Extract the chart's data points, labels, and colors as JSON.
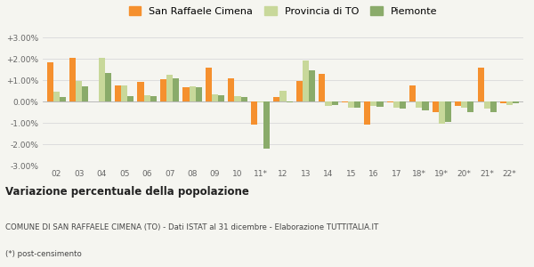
{
  "years": [
    "02",
    "03",
    "04",
    "05",
    "06",
    "07",
    "08",
    "09",
    "10",
    "11*",
    "12",
    "13",
    "14",
    "15",
    "16",
    "17",
    "18*",
    "19*",
    "20*",
    "21*",
    "22*"
  ],
  "san_raffaele": [
    1.85,
    2.05,
    0.0,
    0.75,
    0.9,
    1.05,
    0.65,
    1.6,
    1.1,
    -1.1,
    0.2,
    0.95,
    1.3,
    -0.05,
    -1.1,
    -0.05,
    0.75,
    -0.5,
    -0.2,
    1.6,
    -0.1
  ],
  "provincia_to": [
    0.45,
    0.95,
    2.05,
    0.75,
    0.3,
    1.25,
    0.7,
    0.35,
    0.25,
    -0.05,
    0.5,
    1.9,
    -0.2,
    -0.3,
    -0.2,
    -0.3,
    -0.3,
    -1.05,
    -0.3,
    -0.35,
    -0.15
  ],
  "piemonte": [
    0.2,
    0.7,
    1.35,
    0.25,
    0.25,
    1.1,
    0.65,
    0.3,
    0.2,
    -2.2,
    -0.05,
    1.45,
    -0.15,
    -0.3,
    -0.25,
    -0.35,
    -0.4,
    -0.95,
    -0.5,
    -0.5,
    -0.1
  ],
  "color_san_raffaele": "#f5902e",
  "color_provincia": "#c8d89a",
  "color_piemonte": "#8aab6a",
  "ylim": [
    -3.0,
    3.0
  ],
  "ytick_labels": [
    "-3.00%",
    "-2.00%",
    "-1.00%",
    "0.00%",
    "+1.00%",
    "+2.00%",
    "+3.00%"
  ],
  "title_bold": "Variazione percentuale della popolazione",
  "subtitle": "COMUNE DI SAN RAFFAELE CIMENA (TO) - Dati ISTAT al 31 dicembre - Elaborazione TUTTITALIA.IT",
  "footnote": "(*) post-censimento",
  "legend_labels": [
    "San Raffaele Cimena",
    "Provincia di TO",
    "Piemonte"
  ],
  "background_color": "#f5f5f0",
  "grid_color": "#dddddd"
}
